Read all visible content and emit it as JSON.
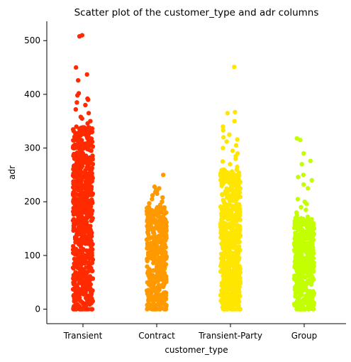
{
  "chart_data": {
    "type": "scatter",
    "title": "Scatter plot of the customer_type and adr columns",
    "xlabel": "customer_type",
    "ylabel": "adr",
    "categories": [
      "Transient",
      "Contract",
      "Transient-Party",
      "Group"
    ],
    "colors": [
      "#ff2a00",
      "#ff9900",
      "#ffe600",
      "#c3ff00"
    ],
    "ylim": [
      -27,
      536
    ],
    "yticks": [
      0,
      100,
      200,
      300,
      400,
      500
    ],
    "grid": false,
    "legend": "none",
    "series": [
      {
        "category": "Transient",
        "dense_range": [
          0,
          340
        ],
        "outliers": [
          510,
          508,
          450,
          437,
          426,
          402,
          398,
          392,
          390,
          385,
          380,
          372,
          365,
          358,
          355,
          350,
          346
        ]
      },
      {
        "category": "Contract",
        "dense_range": [
          0,
          190
        ],
        "outliers": [
          250,
          228,
          225,
          222,
          220,
          218,
          215,
          212,
          208,
          205,
          200,
          197,
          194
        ]
      },
      {
        "category": "Transient-Party",
        "dense_range": [
          0,
          260
        ],
        "outliers": [
          451,
          367,
          365,
          350,
          340,
          333,
          325,
          320,
          316,
          312,
          305,
          300,
          295,
          290,
          285,
          280,
          275,
          270,
          265
        ]
      },
      {
        "category": "Group",
        "dense_range": [
          0,
          170
        ],
        "outliers": [
          318,
          315,
          290,
          276,
          270,
          250,
          246,
          240,
          232,
          225,
          205,
          200,
          196,
          190,
          185,
          180,
          175,
          172
        ]
      }
    ]
  }
}
